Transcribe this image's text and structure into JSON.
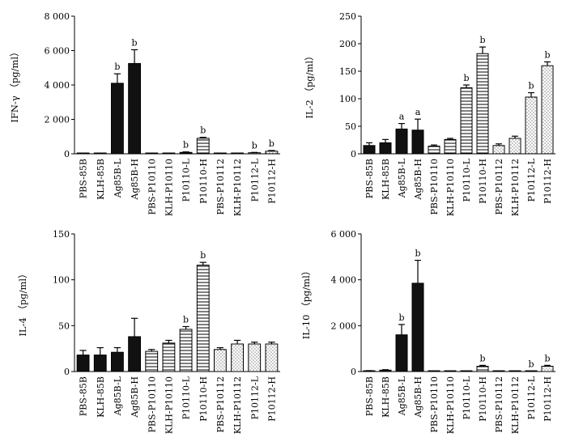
{
  "chart_data": [
    {
      "type": "bar",
      "id": "ifn",
      "ylabel": "IFN-γ （pg/ml）",
      "ylim": [
        0,
        8000
      ],
      "yticks": [
        0,
        2000,
        4000,
        6000,
        8000
      ],
      "ytick_labels": [
        "0",
        "2 000",
        "4 000",
        "6 000",
        "8 000"
      ],
      "categories": [
        "PBS-85B",
        "KLH-85B",
        "Ag85B-L",
        "Ag85B-H",
        "PBS-P10110",
        "KLH-P10110",
        "P10110-L",
        "P10110-H",
        "PBS-P10112",
        "KLH-P10112",
        "P10112-L",
        "P10112-H"
      ],
      "values": [
        10,
        20,
        4100,
        5250,
        10,
        15,
        80,
        900,
        10,
        15,
        60,
        150
      ],
      "errors": [
        0,
        0,
        550,
        800,
        0,
        0,
        30,
        60,
        0,
        0,
        20,
        40
      ],
      "significance": [
        "",
        "",
        "b",
        "b",
        "",
        "",
        "b",
        "b",
        "",
        "",
        "b",
        "b"
      ]
    },
    {
      "type": "bar",
      "id": "il2",
      "ylabel": "IL-2 （pg/ml）",
      "ylim": [
        0,
        250
      ],
      "yticks": [
        0,
        50,
        100,
        150,
        200,
        250
      ],
      "ytick_labels": [
        "0",
        "50",
        "100",
        "150",
        "200",
        "250"
      ],
      "categories": [
        "PBS-85B",
        "KLH-85B",
        "Ag85B-L",
        "Ag85B-H",
        "PBS-P10110",
        "KLH-P10110",
        "P10110-L",
        "P10110-H",
        "PBS-P10112",
        "KLH-P10112",
        "P10112-L",
        "P10112-H"
      ],
      "values": [
        15,
        20,
        45,
        43,
        14,
        26,
        120,
        182,
        15,
        28,
        103,
        160
      ],
      "errors": [
        5,
        6,
        10,
        20,
        2,
        2,
        5,
        12,
        3,
        4,
        8,
        7
      ],
      "significance": [
        "",
        "",
        "a",
        "a",
        "",
        "",
        "b",
        "b",
        "",
        "",
        "b",
        "b"
      ]
    },
    {
      "type": "bar",
      "id": "il4",
      "ylabel": "IL-4 （pg/ml）",
      "ylim": [
        0,
        150
      ],
      "yticks": [
        0,
        50,
        100,
        150
      ],
      "ytick_labels": [
        "0",
        "50",
        "100",
        "150"
      ],
      "categories": [
        "PBS-85B",
        "KLH-85B",
        "Ag85B-L",
        "Ag85B-H",
        "PBS-P10110",
        "KLH-P10110",
        "P10110-L",
        "P10110-H",
        "PBS-P10112",
        "KLH-P10112",
        "P10112-L",
        "P10112-H"
      ],
      "values": [
        18,
        18,
        21,
        38,
        22,
        31,
        46,
        116,
        24,
        30,
        30,
        30
      ],
      "errors": [
        5,
        8,
        5,
        20,
        2,
        3,
        3,
        3,
        2,
        4,
        2,
        2
      ],
      "significance": [
        "",
        "",
        "",
        "",
        "",
        "",
        "b",
        "b",
        "",
        "",
        "",
        ""
      ]
    },
    {
      "type": "bar",
      "id": "il10",
      "ylabel": "IL-10 （pg/ml）",
      "ylim": [
        0,
        6000
      ],
      "yticks": [
        0,
        2000,
        4000,
        6000
      ],
      "ytick_labels": [
        "0",
        "2 000",
        "4 000",
        "6 000"
      ],
      "categories": [
        "PBS-85B",
        "KLH-85B",
        "Ag85B-L",
        "Ag85B-H",
        "PBS-P10110",
        "KLH-P10110",
        "P10110-L",
        "P10110-H",
        "PBS-P10112",
        "KLH-P10112",
        "P10112-L",
        "P10112-H"
      ],
      "values": [
        30,
        60,
        1600,
        3850,
        15,
        20,
        20,
        230,
        15,
        20,
        20,
        230
      ],
      "errors": [
        10,
        20,
        450,
        1000,
        5,
        5,
        5,
        40,
        5,
        5,
        5,
        40
      ],
      "significance": [
        "",
        "",
        "b",
        "b",
        "",
        "",
        "",
        "b",
        "",
        "",
        "b",
        "b"
      ]
    }
  ],
  "fill_patterns": [
    "black",
    "black",
    "black",
    "black",
    "hlines",
    "hlines",
    "hlines",
    "hlines",
    "dots",
    "dots",
    "dots",
    "dots"
  ]
}
